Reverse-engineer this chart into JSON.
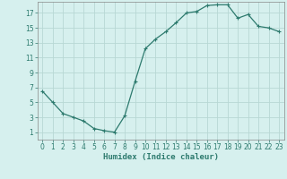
{
  "x": [
    0,
    1,
    2,
    3,
    4,
    5,
    6,
    7,
    8,
    9,
    10,
    11,
    12,
    13,
    14,
    15,
    16,
    17,
    18,
    19,
    20,
    21,
    22,
    23
  ],
  "y": [
    6.5,
    5.0,
    3.5,
    3.0,
    2.5,
    1.5,
    1.2,
    1.0,
    3.2,
    7.8,
    12.2,
    13.5,
    14.5,
    15.7,
    17.0,
    17.2,
    18.0,
    18.1,
    18.1,
    16.3,
    16.8,
    15.2,
    15.0,
    14.5
  ],
  "line_color": "#2d7a6e",
  "marker": "+",
  "marker_size": 3,
  "marker_lw": 0.8,
  "bg_color": "#d6f0ee",
  "grid_color": "#b8d8d4",
  "xlabel": "Humidex (Indice chaleur)",
  "xlim": [
    -0.5,
    23.5
  ],
  "ylim": [
    0,
    18.5
  ],
  "yticks": [
    1,
    3,
    5,
    7,
    9,
    11,
    13,
    15,
    17
  ],
  "xticks": [
    0,
    1,
    2,
    3,
    4,
    5,
    6,
    7,
    8,
    9,
    10,
    11,
    12,
    13,
    14,
    15,
    16,
    17,
    18,
    19,
    20,
    21,
    22,
    23
  ],
  "tick_label_fontsize": 5.5,
  "xlabel_fontsize": 6.5,
  "line_width": 0.9
}
